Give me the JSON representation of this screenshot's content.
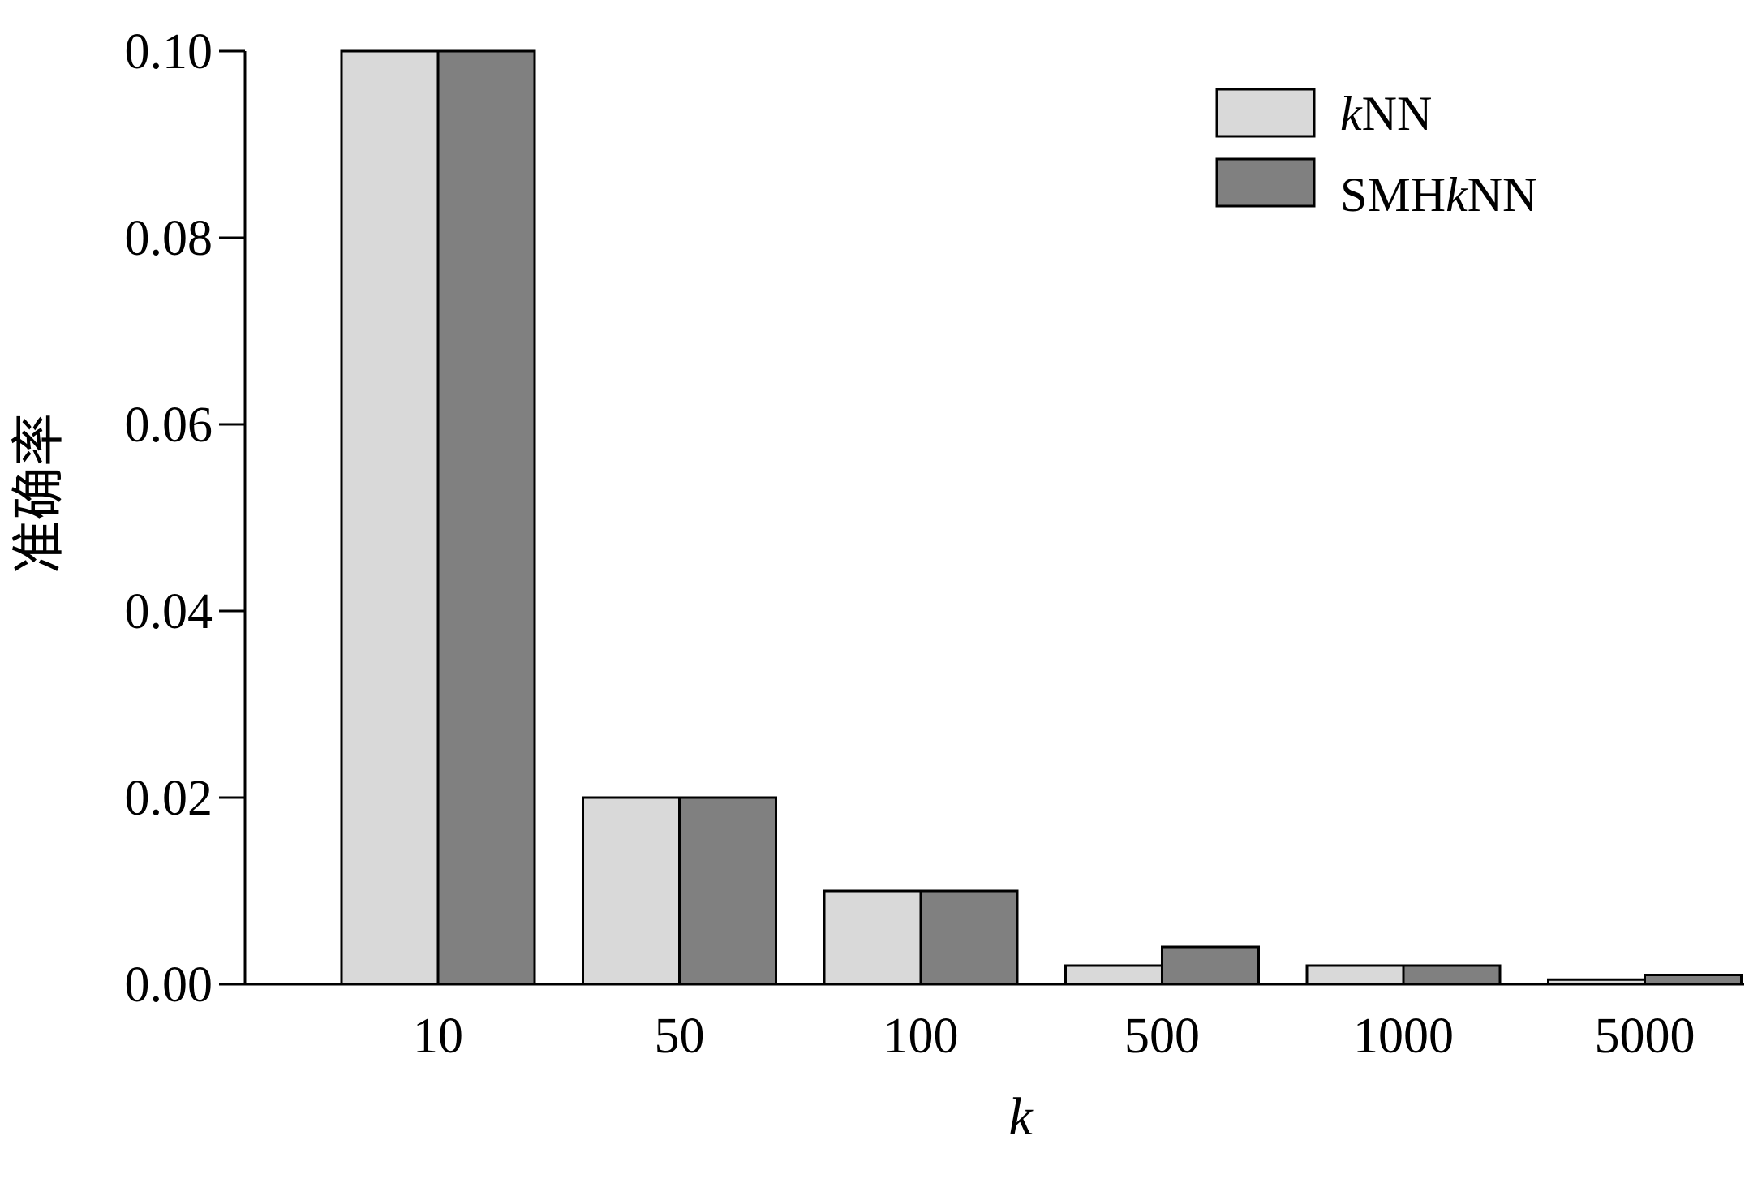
{
  "chart_data": {
    "type": "bar",
    "categories": [
      "10",
      "50",
      "100",
      "500",
      "1000",
      "5000"
    ],
    "series": [
      {
        "name": "kNN",
        "name_prefix_italic": "k",
        "name_suffix": "NN",
        "color": "#d9d9d9",
        "values": [
          0.1,
          0.02,
          0.01,
          0.002,
          0.002,
          0.0005
        ]
      },
      {
        "name": "SMHkNN",
        "name_prefix": "SMH",
        "name_italic": "k",
        "name_suffix": "NN",
        "color": "#808080",
        "values": [
          0.1,
          0.02,
          0.01,
          0.004,
          0.002,
          0.001
        ]
      }
    ],
    "xlabel": "k",
    "ylabel": "准确率",
    "ylim": [
      0,
      0.1
    ],
    "yticks": [
      "0.00",
      "0.02",
      "0.04",
      "0.06",
      "0.08",
      "0.10"
    ],
    "legend_position": "top-right",
    "grid": false
  }
}
